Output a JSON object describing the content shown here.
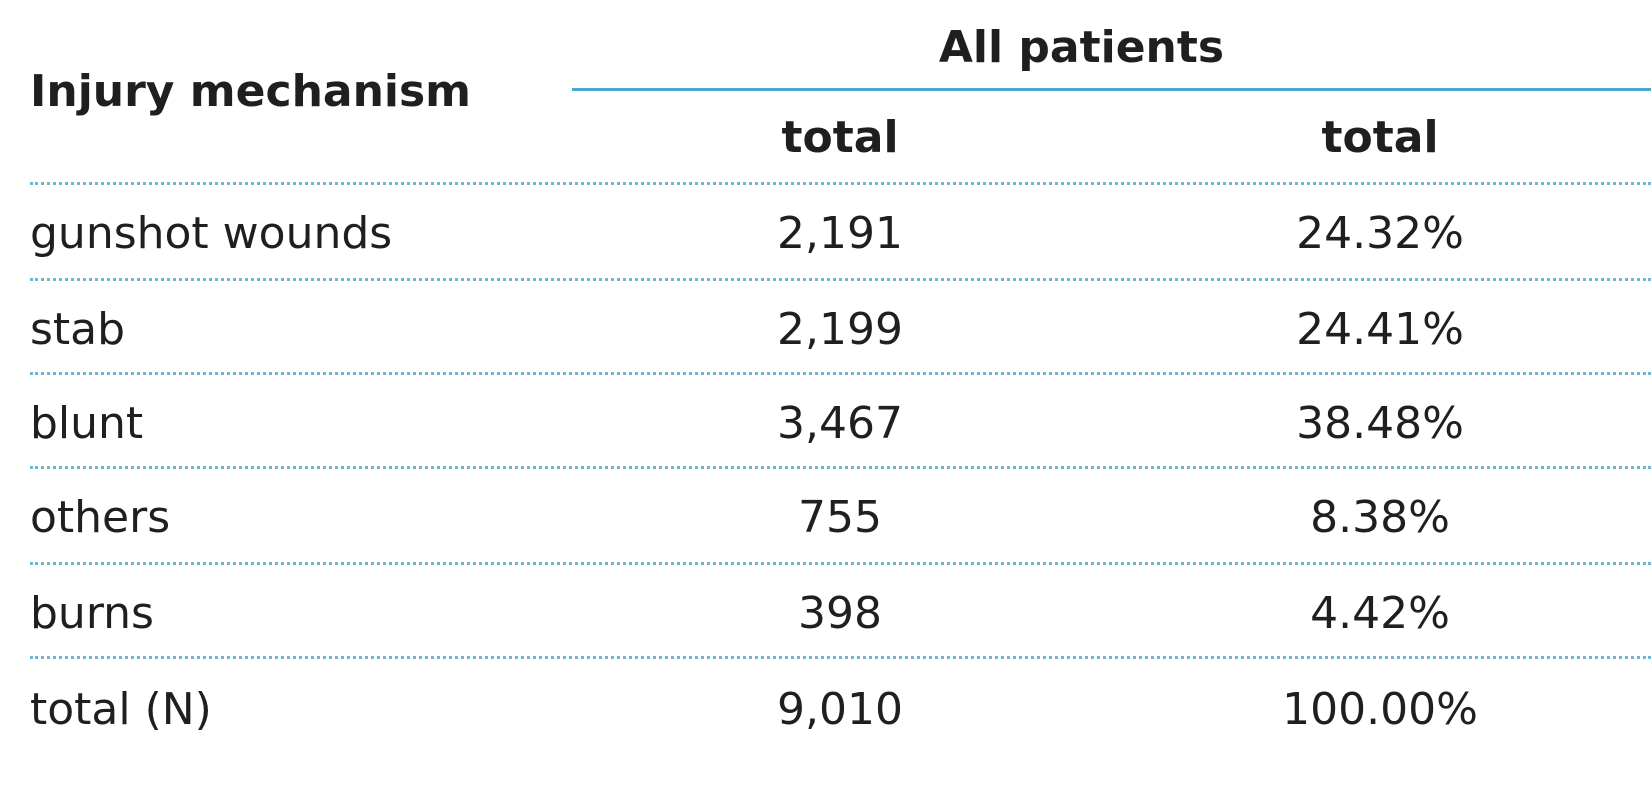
{
  "table": {
    "row_header_label": "Injury mechanism",
    "group_header": "All patients",
    "subheaders": [
      "total",
      "total"
    ],
    "rows": [
      {
        "mechanism": "gunshot wounds",
        "count": "2,191",
        "percent": "24.32%"
      },
      {
        "mechanism": "stab",
        "count": "2,199",
        "percent": "24.41%"
      },
      {
        "mechanism": "blunt",
        "count": "3,467",
        "percent": "38.48%"
      },
      {
        "mechanism": "others",
        "count": "755",
        "percent": "8.38%"
      },
      {
        "mechanism": "burns",
        "count": "398",
        "percent": "4.42%"
      },
      {
        "mechanism": "total (N)",
        "count": "9,010",
        "percent": "100.00%"
      }
    ]
  },
  "colors": {
    "rule": "#4aa8d0",
    "dotted_rule": "#6cb7d8",
    "text": "#1f1f1f"
  }
}
